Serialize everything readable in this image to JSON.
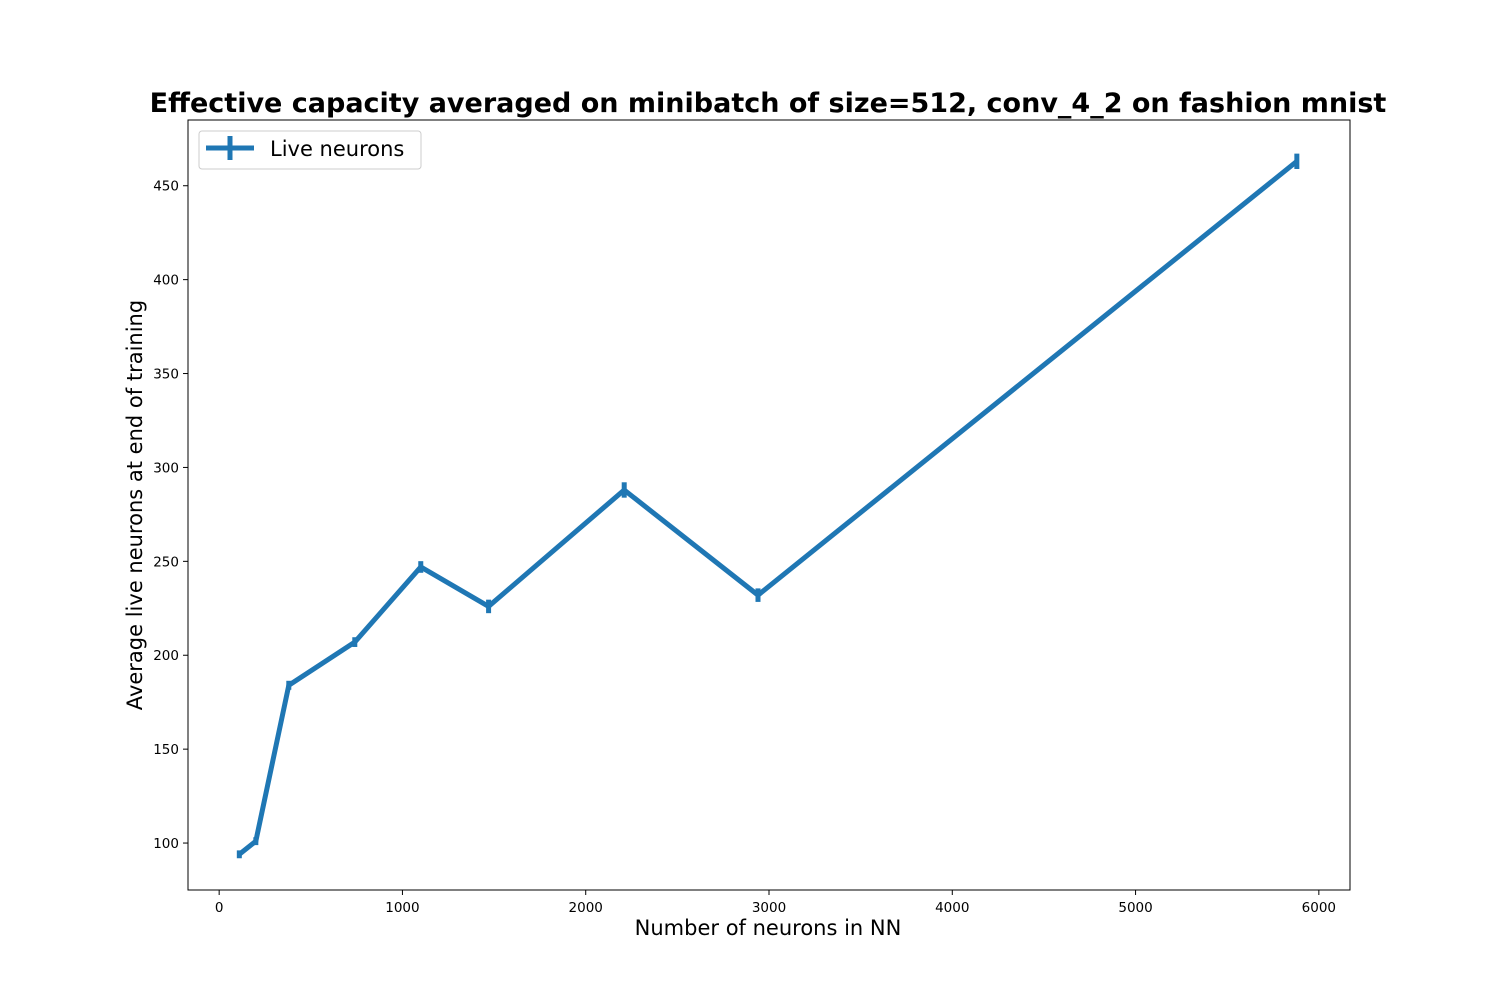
{
  "chart_data": {
    "type": "line",
    "title": "Effective capacity averaged on minibatch of size=512, conv_4_2 on fashion mnist",
    "xlabel": "Number of neurons in NN",
    "ylabel": "Average live neurons at end of training",
    "xlim": [
      -170,
      6170
    ],
    "ylim": [
      75,
      485
    ],
    "xticks": [
      0,
      1000,
      2000,
      3000,
      4000,
      5000,
      6000
    ],
    "yticks": [
      100,
      150,
      200,
      250,
      300,
      350,
      400,
      450
    ],
    "legend_position": "top-left",
    "grid": false,
    "color": "#1f77b4",
    "series": [
      {
        "name": "Live neurons",
        "x": [
          110,
          200,
          380,
          740,
          1100,
          1470,
          2210,
          2940,
          5880
        ],
        "y": [
          94,
          101,
          184,
          207,
          247,
          226,
          288,
          232,
          463
        ],
        "err": [
          0.5,
          0.5,
          0.8,
          1.0,
          1.5,
          2.0,
          2.5,
          2.0,
          2.5
        ]
      }
    ]
  }
}
